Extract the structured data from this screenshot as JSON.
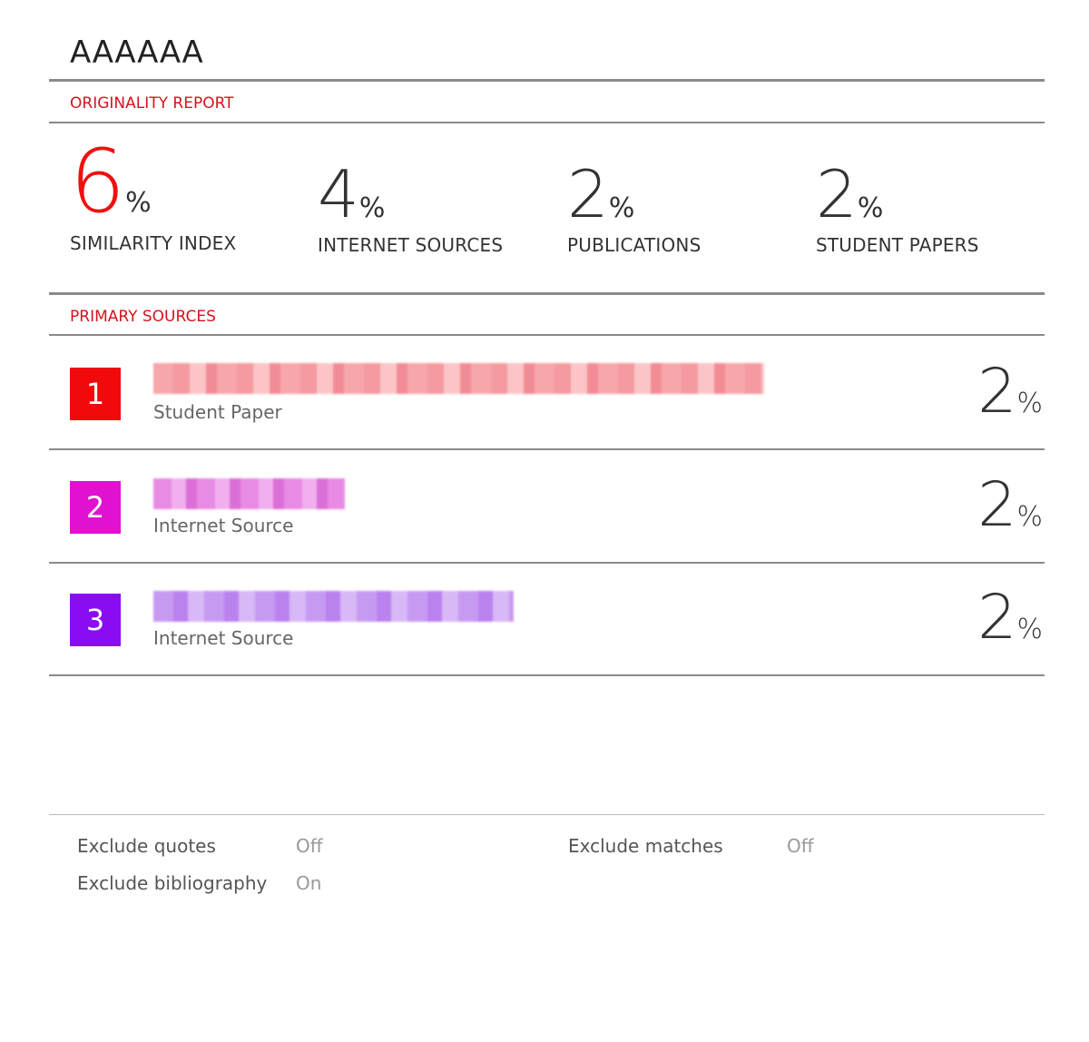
{
  "title": "AAAAAA",
  "originality_report_label": "ORIGINALITY REPORT",
  "stats": [
    {
      "value": "6",
      "unit": "%",
      "label": "SIMILARITY INDEX"
    },
    {
      "value": "4",
      "unit": "%",
      "label": "INTERNET SOURCES"
    },
    {
      "value": "2",
      "unit": "%",
      "label": "PUBLICATIONS"
    },
    {
      "value": "2",
      "unit": "%",
      "label": "STUDENT PAPERS"
    }
  ],
  "primary_sources_label": "PRIMARY SOURCES",
  "sources": [
    {
      "rank": "1",
      "type": "Student Paper",
      "percent": "2",
      "unit": "%",
      "color": "#f00a0a",
      "name_redacted": true
    },
    {
      "rank": "2",
      "type": "Internet Source",
      "percent": "2",
      "unit": "%",
      "color": "#e012d0",
      "name_redacted": true
    },
    {
      "rank": "3",
      "type": "Internet Source",
      "percent": "2",
      "unit": "%",
      "color": "#8a0cf0",
      "name_redacted": true
    }
  ],
  "options": {
    "exclude_quotes": {
      "label": "Exclude quotes",
      "value": "Off"
    },
    "exclude_bibliography": {
      "label": "Exclude bibliography",
      "value": "On"
    },
    "exclude_matches": {
      "label": "Exclude matches",
      "value": "Off"
    }
  },
  "colors": {
    "accent": "#d2141e",
    "similarity": "#f01010"
  }
}
